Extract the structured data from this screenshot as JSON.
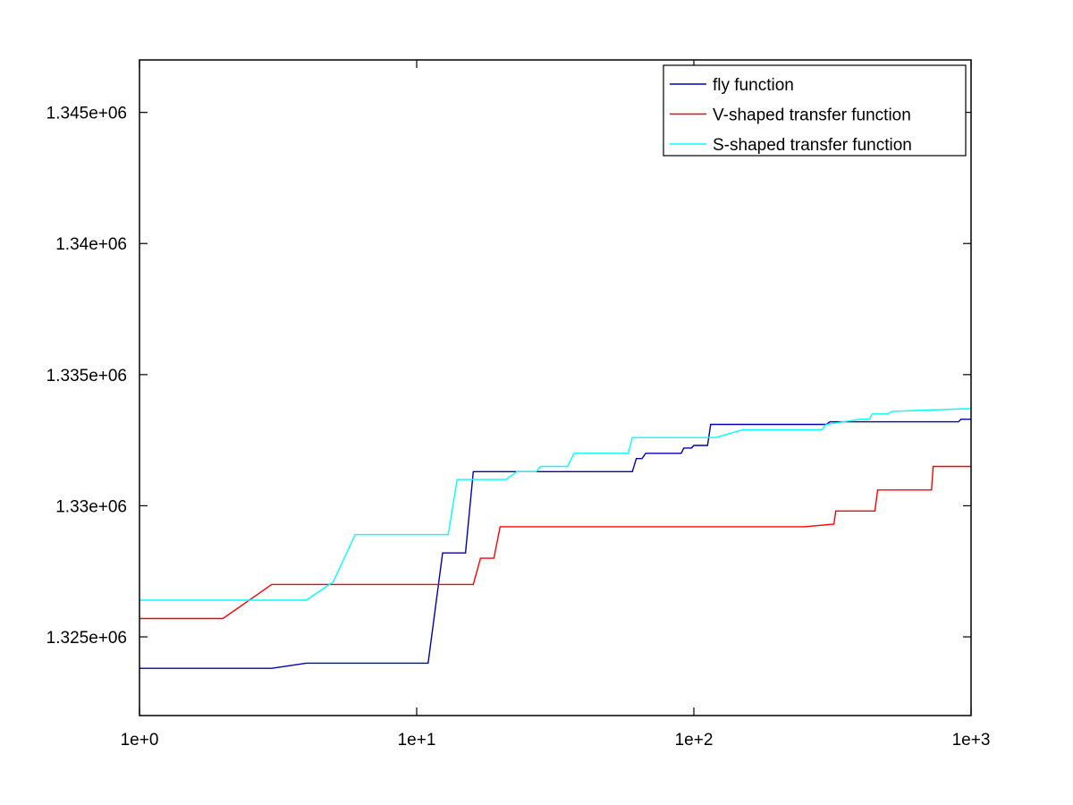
{
  "chart_data": {
    "type": "line",
    "title": "",
    "xlabel": "",
    "ylabel": "",
    "x_scale": "log",
    "xlim": [
      1,
      1000
    ],
    "ylim": [
      1322000,
      1347000
    ],
    "grid": false,
    "legend_position": "top-right",
    "x_ticks": [
      {
        "value": 1,
        "label": "1e+0"
      },
      {
        "value": 10,
        "label": "1e+1"
      },
      {
        "value": 100,
        "label": "1e+2"
      },
      {
        "value": 1000,
        "label": "1e+3"
      }
    ],
    "y_ticks": [
      {
        "value": 1325000,
        "label": "1.325e+06"
      },
      {
        "value": 1330000,
        "label": "1.33e+06"
      },
      {
        "value": 1335000,
        "label": "1.335e+06"
      },
      {
        "value": 1340000,
        "label": "1.34e+06"
      },
      {
        "value": 1345000,
        "label": "1.345e+06"
      }
    ],
    "series": [
      {
        "name": "fly function",
        "color": "#0000b3",
        "points": [
          [
            1,
            1323800
          ],
          [
            3,
            1323800
          ],
          [
            4,
            1324000
          ],
          [
            11,
            1324000
          ],
          [
            12.4,
            1328200
          ],
          [
            15,
            1328200
          ],
          [
            16,
            1331300
          ],
          [
            60,
            1331300
          ],
          [
            62,
            1331800
          ],
          [
            65,
            1331800
          ],
          [
            67,
            1332000
          ],
          [
            90,
            1332000
          ],
          [
            92,
            1332200
          ],
          [
            98,
            1332200
          ],
          [
            100,
            1332300
          ],
          [
            112,
            1332300
          ],
          [
            115,
            1333100
          ],
          [
            300,
            1333100
          ],
          [
            310,
            1333200
          ],
          [
            500,
            1333200
          ],
          [
            520,
            1333200
          ],
          [
            900,
            1333200
          ],
          [
            920,
            1333300
          ],
          [
            1000,
            1333300
          ]
        ]
      },
      {
        "name": "V-shaped transfer function",
        "color": "#ff0000",
        "points": [
          [
            1,
            1325700
          ],
          [
            2,
            1325700
          ],
          [
            3,
            1327000
          ],
          [
            16,
            1327000
          ],
          [
            17,
            1328000
          ],
          [
            19,
            1328000
          ],
          [
            20,
            1329200
          ],
          [
            250,
            1329200
          ],
          [
            320,
            1329300
          ],
          [
            325,
            1329800
          ],
          [
            450,
            1329800
          ],
          [
            460,
            1330600
          ],
          [
            720,
            1330600
          ],
          [
            730,
            1331500
          ],
          [
            1000,
            1331500
          ]
        ]
      },
      {
        "name": "S-shaped transfer function",
        "color": "#00ffff",
        "points": [
          [
            1,
            1326400
          ],
          [
            4,
            1326400
          ],
          [
            5,
            1327100
          ],
          [
            6,
            1328900
          ],
          [
            13,
            1328900
          ],
          [
            14,
            1331000
          ],
          [
            21,
            1331000
          ],
          [
            23,
            1331300
          ],
          [
            27,
            1331300
          ],
          [
            28,
            1331500
          ],
          [
            35,
            1331500
          ],
          [
            37,
            1332000
          ],
          [
            58,
            1332000
          ],
          [
            60,
            1332600
          ],
          [
            120,
            1332600
          ],
          [
            150,
            1332900
          ],
          [
            290,
            1332900
          ],
          [
            300,
            1333100
          ],
          [
            400,
            1333300
          ],
          [
            430,
            1333300
          ],
          [
            440,
            1333500
          ],
          [
            500,
            1333500
          ],
          [
            520,
            1333600
          ],
          [
            950,
            1333700
          ],
          [
            1000,
            1333700
          ]
        ]
      }
    ]
  }
}
